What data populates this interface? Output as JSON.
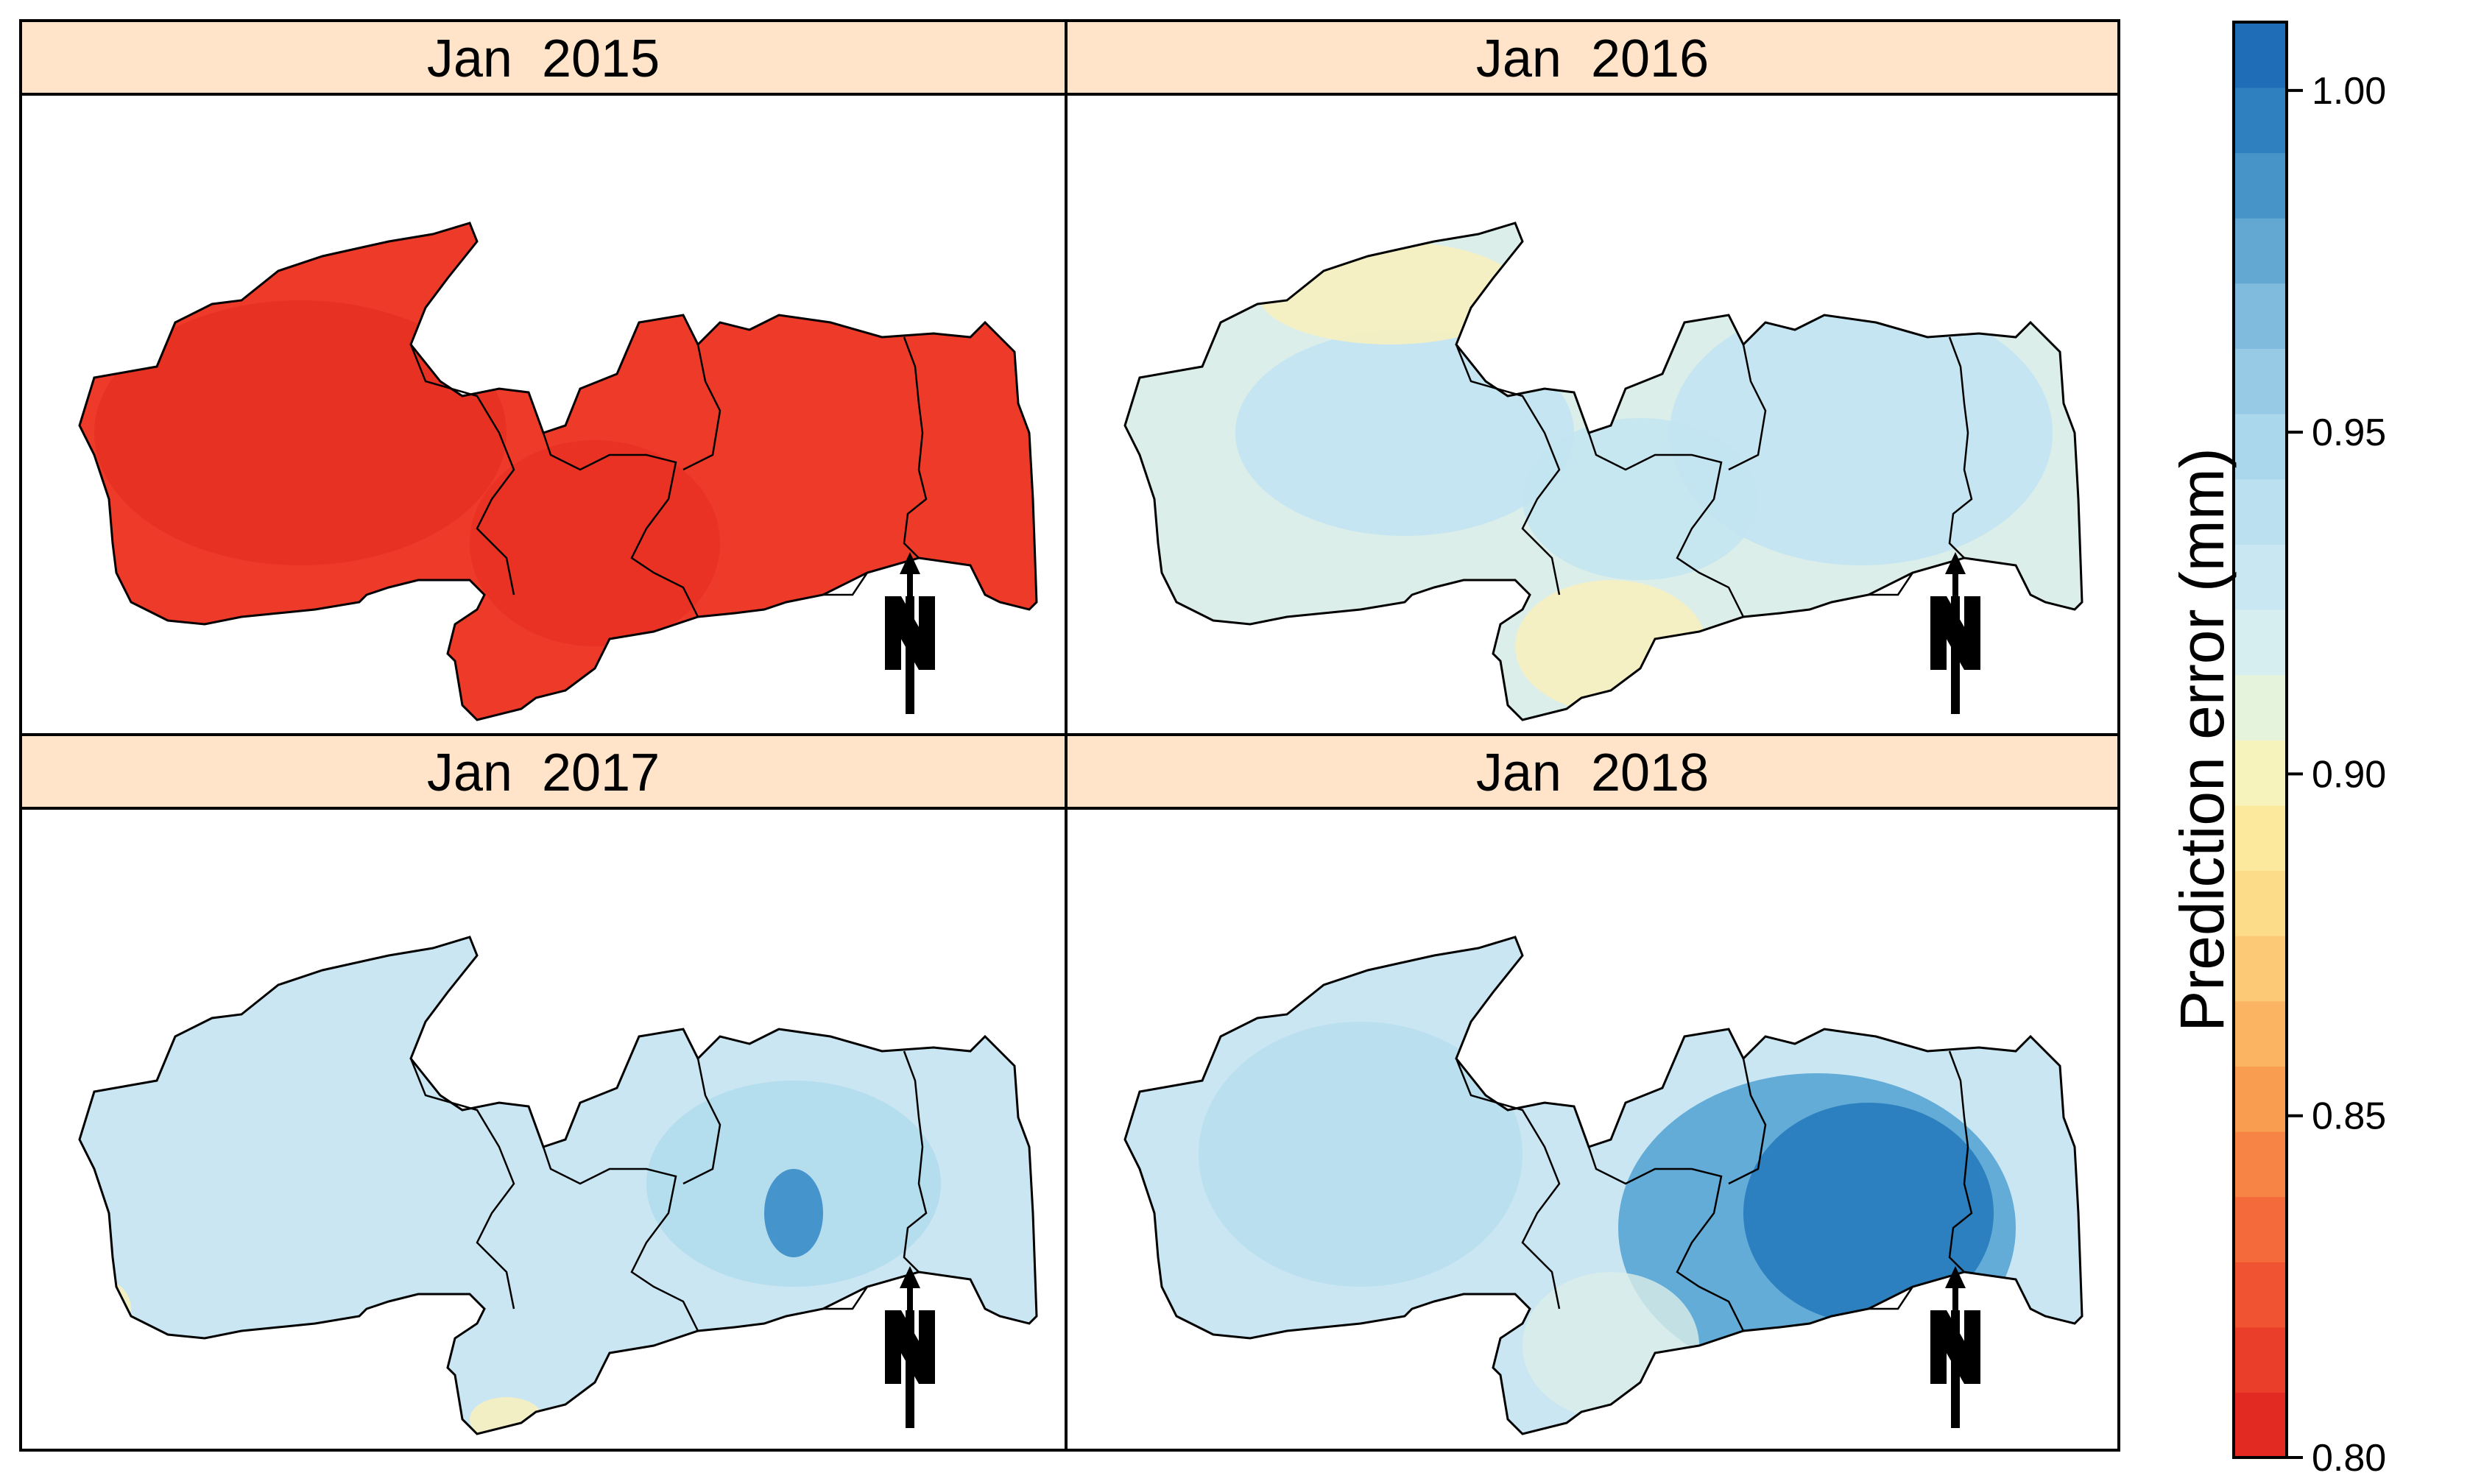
{
  "figure": {
    "panels": [
      {
        "title": "Jan  2015",
        "scheme": "red"
      },
      {
        "title": "Jan  2016",
        "scheme": "pale"
      },
      {
        "title": "Jan  2017",
        "scheme": "light"
      },
      {
        "title": "Jan  2018",
        "scheme": "blue"
      }
    ],
    "colorbar": {
      "title": "Prediction error (mm)",
      "min": 0.8,
      "max": 1.01,
      "ticks": [
        {
          "value": 1.0,
          "label": "1.00"
        },
        {
          "value": 0.95,
          "label": "0.95"
        },
        {
          "value": 0.9,
          "label": "0.90"
        },
        {
          "value": 0.85,
          "label": "0.85"
        },
        {
          "value": 0.8,
          "label": "0.80"
        }
      ],
      "colors": [
        "#e32a22",
        "#ea3d2a",
        "#f05332",
        "#f46a3a",
        "#f78444",
        "#f99d51",
        "#fbb562",
        "#fcca76",
        "#fddc89",
        "#fde99d",
        "#f6f3bd",
        "#e6f3dc",
        "#d7eef0",
        "#c9e7f2",
        "#bbe0f0",
        "#aad7ec",
        "#97cae5",
        "#80bbde",
        "#62a8d3",
        "#4694c8",
        "#2f80bf",
        "#1e6db6"
      ]
    },
    "north_arrow_label": "N",
    "colors": {
      "strip_bg": "#ffe4c9",
      "boundary": "#000000",
      "red_fill": "#ee3a29",
      "red_dark": "#e22a1f",
      "pale_fill": "#dbeee9",
      "pale_blue": "#c3e4f1",
      "pale_yellow": "#f7f0c0",
      "light_fill": "#c9e6f2",
      "light_mid": "#b1dbed",
      "light_dark": "#3f8fc8",
      "blue_fill": "#c9e6f2",
      "blue_mid": "#5ea9d6",
      "blue_dark": "#2378bb"
    }
  }
}
